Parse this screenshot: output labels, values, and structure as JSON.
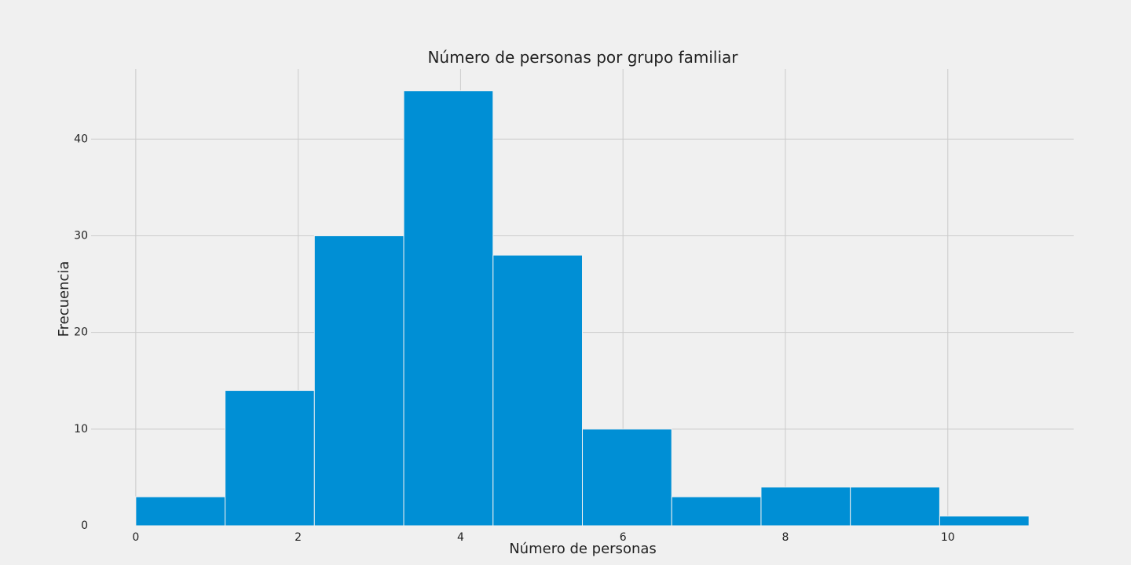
{
  "chart_data": {
    "type": "bar",
    "title": "Número de personas por grupo familiar",
    "xlabel": "Número de personas",
    "ylabel": "Frecuencia",
    "bin_edges": [
      0,
      1.1,
      2.2,
      3.3,
      4.4,
      5.5,
      6.6,
      7.7,
      8.8,
      9.9,
      11
    ],
    "values": [
      3,
      14,
      30,
      45,
      28,
      10,
      3,
      4,
      4,
      1
    ],
    "xlim": [
      -0.55,
      11.55
    ],
    "ylim": [
      0,
      47.25
    ],
    "xticks": [
      0,
      2,
      4,
      6,
      8,
      10
    ],
    "yticks": [
      0,
      10,
      20,
      30,
      40
    ],
    "grid": true,
    "bar_color": "#008fd5",
    "background_color": "#f0f0f0"
  }
}
